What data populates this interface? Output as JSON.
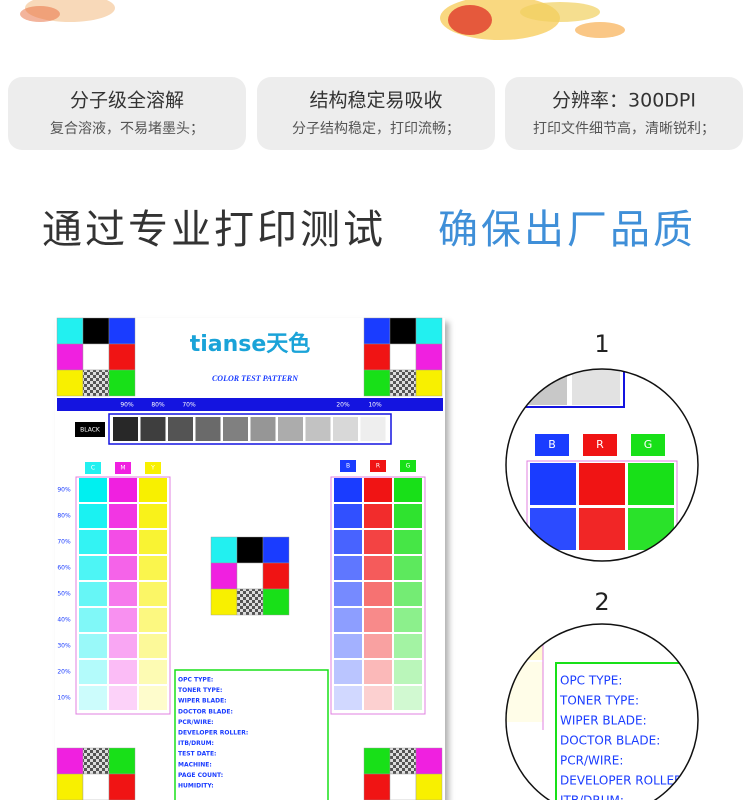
{
  "features": [
    {
      "title": "分子级全溶解",
      "text": "复合溶液，不易堵墨头；"
    },
    {
      "title": "结构稳定易吸收",
      "text": "分子结构稳定，打印流畅；"
    },
    {
      "title": "分辨率：300DPI",
      "text": "打印文件细节高，清晰锐利；"
    }
  ],
  "headline": {
    "part1": "通过专业打印测试",
    "part2": "确保出厂品质"
  },
  "test_pattern": {
    "brand": "tianse天色",
    "title": "COLOR TEST PATTERN",
    "black_scale_labels": [
      "90%",
      "80%",
      "70%",
      "20%",
      "10%"
    ],
    "black_label": "BLACK",
    "cmy_labels": [
      "C",
      "M",
      "Y"
    ],
    "rgb_labels": [
      "B",
      "R",
      "G"
    ],
    "row_labels": [
      "90%",
      "80%",
      "70%",
      "60%",
      "50%",
      "40%",
      "30%",
      "20%",
      "10%"
    ],
    "form_fields": [
      "OPC TYPE:",
      "TONER TYPE:",
      "WIPER BLADE:",
      "DOCTOR BLADE:",
      "PCR/WIRE:",
      "DEVELOPER ROLLER:",
      "ITB/DRUM:",
      "TEST DATE:",
      "MACHINE:",
      "PAGE COUNT:",
      "HUMIDITY:"
    ]
  },
  "zoom": [
    {
      "label": "1",
      "channels": [
        "B",
        "R",
        "G"
      ]
    },
    {
      "label": "2",
      "fields": [
        "OPC TYPE:",
        "TONER TYPE:",
        "WIPER BLADE:",
        "DOCTOR BLADE:",
        "PCR/WIRE:",
        "DEVELOPER ROLLER:",
        "ITB/DRUM:"
      ]
    }
  ]
}
